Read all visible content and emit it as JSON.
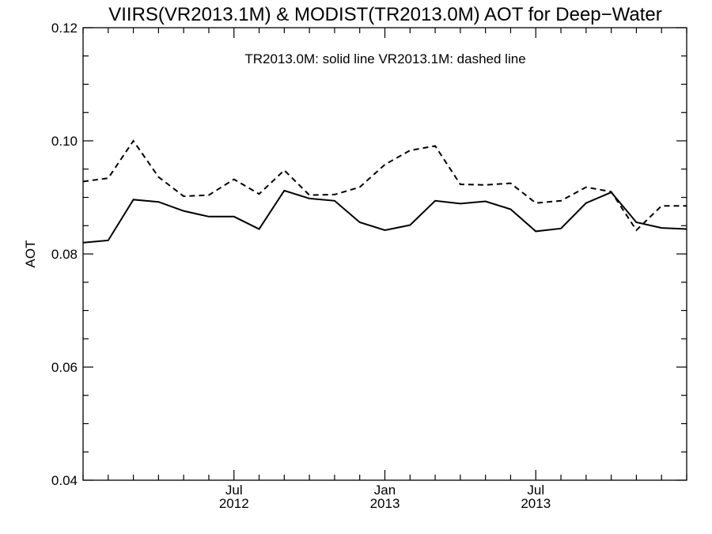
{
  "chart_data": {
    "type": "line",
    "title": "VIIRS(VR2013.1M) & MODIST(TR2013.0M)  AOT for Deep−Water",
    "annotation": "TR2013.0M: solid line   VR2013.1M: dashed line",
    "xlabel": "",
    "ylabel": "AOT",
    "ylim": [
      0.04,
      0.12
    ],
    "yticks": [
      0.04,
      0.06,
      0.08,
      0.1,
      0.12
    ],
    "ytick_labels": [
      "0.04",
      "0.06",
      "0.08",
      "0.10",
      "0.12"
    ],
    "x_dates": [
      "2012-01",
      "2012-02",
      "2012-03",
      "2012-04",
      "2012-05",
      "2012-06",
      "2012-07",
      "2012-08",
      "2012-09",
      "2012-10",
      "2012-11",
      "2012-12",
      "2013-01",
      "2013-02",
      "2013-03",
      "2013-04",
      "2013-05",
      "2013-06",
      "2013-07",
      "2013-08",
      "2013-09",
      "2013-10",
      "2013-11",
      "2013-12",
      "2014-01"
    ],
    "xlim": [
      "2012-01",
      "2014-01"
    ],
    "xticks": [
      {
        "date": "2012-07",
        "label_line1": "Jul",
        "label_line2": "2012"
      },
      {
        "date": "2013-01",
        "label_line1": "Jan",
        "label_line2": "2013"
      },
      {
        "date": "2013-07",
        "label_line1": "Jul",
        "label_line2": "2013"
      }
    ],
    "grid": false,
    "series": [
      {
        "line_style": "solid",
        "values": [
          0.082,
          0.0824,
          0.0896,
          0.0892,
          0.0876,
          0.0866,
          0.0866,
          0.0844,
          0.0912,
          0.0898,
          0.0894,
          0.0856,
          0.0842,
          0.0851,
          0.0894,
          0.0889,
          0.0893,
          0.0879,
          0.084,
          0.0845,
          0.089,
          0.0909,
          0.0856,
          0.0846,
          0.0844
        ]
      },
      {
        "line_style": "dashed",
        "values": [
          0.0928,
          0.0934,
          0.1,
          0.0936,
          0.0902,
          0.0904,
          0.0932,
          0.0906,
          0.0948,
          0.0904,
          0.0905,
          0.0918,
          0.0958,
          0.0983,
          0.0991,
          0.0923,
          0.0922,
          0.0925,
          0.089,
          0.0894,
          0.0918,
          0.091,
          0.0842,
          0.0885,
          0.0885
        ]
      }
    ]
  }
}
